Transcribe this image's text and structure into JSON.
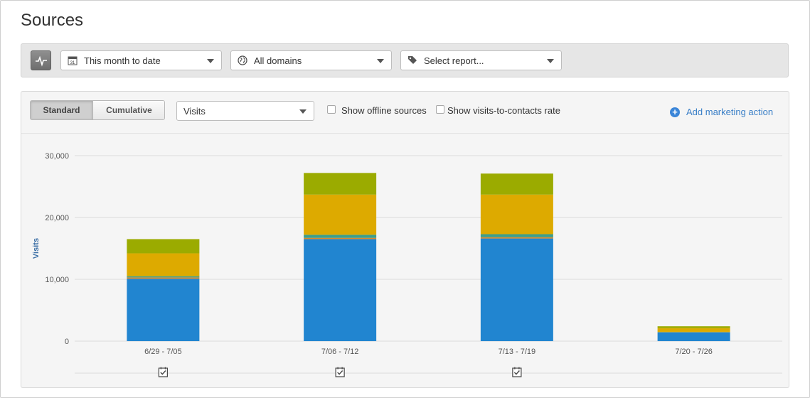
{
  "page": {
    "title": "Sources"
  },
  "filters": {
    "date_range": "This month to date",
    "domain": "All domains",
    "report": "Select report..."
  },
  "toolbar": {
    "standard_label": "Standard",
    "cumulative_label": "Cumulative",
    "active_mode": "Standard",
    "metric": "Visits",
    "offline_sources_label": "Show offline sources",
    "offline_sources_checked": false,
    "visits_to_contacts_label": "Show visits-to-contacts rate",
    "visits_to_contacts_checked": false,
    "add_marketing_action_label": "Add marketing action"
  },
  "colors": {
    "blue": "#2185d0",
    "orange": "#d98a2c",
    "teal": "#3d9e8c",
    "gold": "#ddaa00",
    "olive": "#9bab00"
  },
  "icons": [
    "pulse-icon",
    "calendar-icon",
    "globe-icon",
    "tag-icon",
    "add-circle-icon",
    "note-check-icon"
  ],
  "chart_data": {
    "type": "bar",
    "stacked": true,
    "categories": [
      "6/29 - 7/05",
      "7/06 - 7/12",
      "7/13 - 7/19",
      "7/20 - 7/26"
    ],
    "ylabel": "Visits",
    "yticks": [
      "0",
      "10,000",
      "20,000",
      "30,000"
    ],
    "ylim": [
      0,
      30000
    ],
    "grid": true,
    "series": [
      {
        "color": "#2185d0",
        "values": [
          10100,
          16500,
          16600,
          1400
        ]
      },
      {
        "color": "#d98a2c",
        "values": [
          200,
          200,
          200,
          40
        ]
      },
      {
        "color": "#3d9e8c",
        "values": [
          200,
          500,
          500,
          60
        ]
      },
      {
        "color": "#ddaa00",
        "values": [
          3700,
          6500,
          6400,
          600
        ]
      },
      {
        "color": "#9bab00",
        "values": [
          2300,
          3500,
          3400,
          300
        ]
      }
    ],
    "annotations": [
      true,
      true,
      true,
      false
    ]
  }
}
